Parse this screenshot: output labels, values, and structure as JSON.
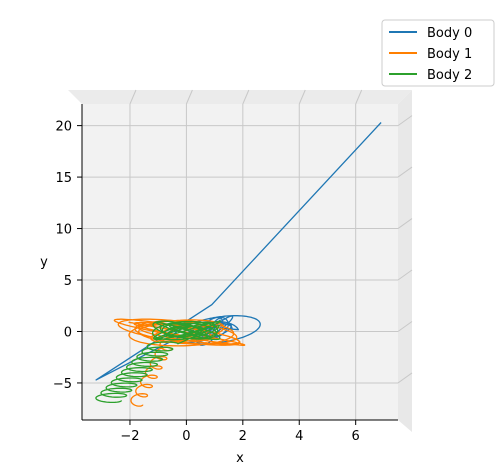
{
  "chart_data": {
    "type": "line",
    "projection": "3d-view-from-top",
    "xlabel": "x",
    "ylabel": "y",
    "xlim": [
      -3.7,
      7.5
    ],
    "ylim": [
      -8.6,
      22.1
    ],
    "xticks": [
      -2,
      0,
      2,
      4,
      6
    ],
    "yticks": [
      -5,
      0,
      5,
      10,
      15,
      20
    ],
    "xtick_labels": [
      "−2",
      "0",
      "2",
      "4",
      "6"
    ],
    "ytick_labels": [
      "−5",
      "0",
      "5",
      "10",
      "15",
      "20"
    ],
    "grid": true,
    "legend_position": "top-right",
    "series": [
      {
        "name": "Body 0",
        "color": "#1f77b4",
        "description": "loops around origin then escapes along a straight line",
        "center": [
          0.9,
          0.1
        ],
        "loop_radius": [
          1.9,
          1.6
        ],
        "escape_start": [
          -3.2,
          -4.7
        ],
        "escape_end": [
          6.9,
          20.3
        ]
      },
      {
        "name": "Body 1",
        "color": "#ff7f00",
        "description": "elliptical loops around origin drifting toward lower-left",
        "center": [
          -0.2,
          -0.1
        ],
        "loop_radius": [
          2.4,
          1.3
        ],
        "drift_end": [
          -1.8,
          -7.1
        ]
      },
      {
        "name": "Body 2",
        "color": "#2ca02c",
        "description": "small loops near origin then zigzag toward lower-left",
        "center": [
          0.0,
          0.1
        ],
        "loop_radius": [
          1.2,
          0.9
        ],
        "drift_end": [
          -2.8,
          -6.7
        ]
      }
    ]
  }
}
